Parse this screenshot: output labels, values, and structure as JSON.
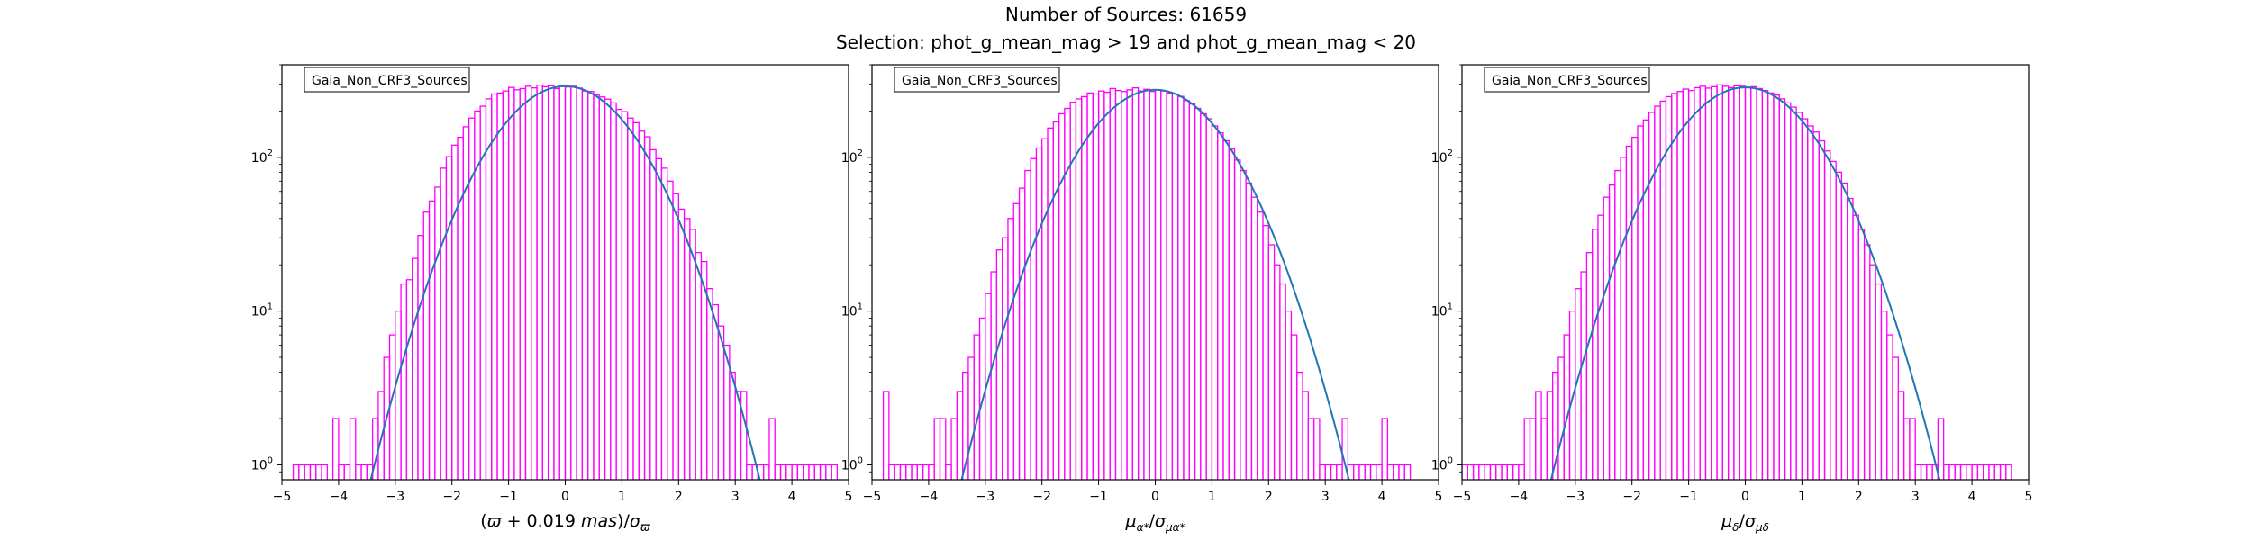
{
  "figure": {
    "title": "Number of Sources: 61659",
    "subtitle": "Selection: phot_g_mean_mag > 19 and phot_g_mean_mag < 20"
  },
  "colors": {
    "histogram": "#ff00ff",
    "fit": "#1f77b4",
    "axes": "#000000"
  },
  "chart_data": [
    {
      "type": "line",
      "panel": "parallax",
      "legend": "Gaia_Non_CRF3_Sources",
      "legend_position": "top-left",
      "xlabel_parts": [
        "(",
        "ϖ",
        " + 0.019 ",
        "mas",
        ")/",
        "σ",
        "ϖ"
      ],
      "ylabel": "",
      "xlim": [
        -5,
        5
      ],
      "ylim": [
        0.8,
        400
      ],
      "yscale": "log",
      "xticks": [
        -5,
        -4,
        -3,
        -2,
        -1,
        0,
        1,
        2,
        3,
        4,
        5
      ],
      "xtick_labels": [
        "−5",
        "−4",
        "−3",
        "−2",
        "−1",
        "0",
        "1",
        "2",
        "3",
        "4",
        "5"
      ],
      "yticks": [
        1,
        10,
        100
      ],
      "ytick_labels": [
        [
          "10",
          "0"
        ],
        [
          "10",
          "1"
        ],
        [
          "10",
          "2"
        ]
      ],
      "grid": false,
      "fit": {
        "name": "",
        "amplitude": 290,
        "mean": 0.0,
        "sigma": 1.0
      },
      "series": [
        {
          "name": "",
          "style": "histogram",
          "x": [
            -4.75,
            -4.65,
            -4.55,
            -4.45,
            -4.35,
            -4.25,
            -4.05,
            -3.95,
            -3.85,
            -3.75,
            -3.65,
            -3.55,
            -3.45,
            -3.35,
            -3.25,
            -3.15,
            -3.05,
            -2.95,
            -2.85,
            -2.75,
            -2.65,
            -2.55,
            -2.45,
            -2.35,
            -2.25,
            -2.15,
            -2.05,
            -1.95,
            -1.85,
            -1.75,
            -1.65,
            -1.55,
            -1.45,
            -1.35,
            -1.25,
            -1.15,
            -1.05,
            -0.95,
            -0.85,
            -0.75,
            -0.65,
            -0.55,
            -0.45,
            -0.35,
            -0.25,
            -0.15,
            -0.05,
            0.05,
            0.15,
            0.25,
            0.35,
            0.45,
            0.55,
            0.65,
            0.75,
            0.85,
            0.95,
            1.05,
            1.15,
            1.25,
            1.35,
            1.45,
            1.55,
            1.65,
            1.75,
            1.85,
            1.95,
            2.05,
            2.15,
            2.25,
            2.35,
            2.45,
            2.55,
            2.65,
            2.75,
            2.85,
            2.95,
            3.05,
            3.15,
            3.25,
            3.35,
            3.45,
            3.55,
            3.65,
            3.75,
            3.85,
            3.95,
            4.05,
            4.15,
            4.25,
            4.35,
            4.45,
            4.55,
            4.65,
            4.75
          ],
          "values": [
            1,
            1,
            1,
            1,
            1,
            1,
            2,
            1,
            1,
            2,
            1,
            1,
            1,
            2,
            3,
            5,
            7,
            10,
            15,
            16,
            22,
            31,
            44,
            52,
            64,
            85,
            101,
            120,
            135,
            158,
            180,
            200,
            215,
            240,
            258,
            262,
            270,
            285,
            275,
            280,
            290,
            283,
            295,
            288,
            292,
            280,
            295,
            287,
            290,
            282,
            270,
            268,
            254,
            247,
            239,
            226,
            205,
            198,
            180,
            168,
            148,
            136,
            112,
            98,
            85,
            70,
            58,
            46,
            40,
            34,
            24,
            21,
            14,
            11,
            8,
            6,
            4,
            3,
            3,
            1,
            1,
            1,
            1,
            2,
            1,
            1,
            1,
            1,
            1,
            1,
            1,
            1,
            1,
            1,
            1
          ]
        }
      ]
    },
    {
      "type": "line",
      "panel": "pm-ra",
      "legend": "Gaia_Non_CRF3_Sources",
      "legend_position": "top-left",
      "xlabel_parts": [
        "μ",
        "α*",
        "/",
        "σ",
        "μα*"
      ],
      "ylabel": "",
      "xlim": [
        -5,
        5
      ],
      "ylim": [
        0.8,
        400
      ],
      "yscale": "log",
      "xticks": [
        -5,
        -4,
        -3,
        -2,
        -1,
        0,
        1,
        2,
        3,
        4,
        5
      ],
      "xtick_labels": [
        "−5",
        "−4",
        "−3",
        "−2",
        "−1",
        "0",
        "1",
        "2",
        "3",
        "4",
        "5"
      ],
      "yticks": [
        1,
        10,
        100
      ],
      "ytick_labels": [
        [
          "10",
          "0"
        ],
        [
          "10",
          "1"
        ],
        [
          "10",
          "2"
        ]
      ],
      "grid": false,
      "fit": {
        "name": "",
        "amplitude": 275,
        "mean": 0.0,
        "sigma": 1.0
      },
      "series": [
        {
          "name": "",
          "style": "histogram",
          "x": [
            -4.75,
            -4.65,
            -4.55,
            -4.45,
            -4.35,
            -4.25,
            -4.15,
            -4.05,
            -3.95,
            -3.85,
            -3.75,
            -3.65,
            -3.55,
            -3.45,
            -3.35,
            -3.25,
            -3.15,
            -3.05,
            -2.95,
            -2.85,
            -2.75,
            -2.65,
            -2.55,
            -2.45,
            -2.35,
            -2.25,
            -2.15,
            -2.05,
            -1.95,
            -1.85,
            -1.75,
            -1.65,
            -1.55,
            -1.45,
            -1.35,
            -1.25,
            -1.15,
            -1.05,
            -0.95,
            -0.85,
            -0.75,
            -0.65,
            -0.55,
            -0.45,
            -0.35,
            -0.25,
            -0.15,
            -0.05,
            0.05,
            0.15,
            0.25,
            0.35,
            0.45,
            0.55,
            0.65,
            0.75,
            0.85,
            0.95,
            1.05,
            1.15,
            1.25,
            1.35,
            1.45,
            1.55,
            1.65,
            1.75,
            1.85,
            1.95,
            2.05,
            2.15,
            2.25,
            2.35,
            2.45,
            2.55,
            2.65,
            2.75,
            2.85,
            2.95,
            3.05,
            3.15,
            3.25,
            3.35,
            3.45,
            3.55,
            3.65,
            3.75,
            3.85,
            3.95,
            4.05,
            4.15,
            4.25,
            4.35,
            4.45
          ],
          "values": [
            3,
            1,
            1,
            1,
            1,
            1,
            1,
            1,
            1,
            2,
            2,
            1,
            2,
            3,
            4,
            5,
            7,
            9,
            13,
            18,
            25,
            30,
            40,
            50,
            63,
            82,
            98,
            115,
            132,
            155,
            170,
            192,
            208,
            228,
            240,
            248,
            262,
            258,
            270,
            265,
            280,
            272,
            268,
            275,
            283,
            270,
            277,
            268,
            275,
            270,
            262,
            258,
            249,
            234,
            222,
            208,
            192,
            178,
            160,
            144,
            128,
            113,
            96,
            82,
            68,
            55,
            44,
            36,
            27,
            20,
            15,
            10,
            7,
            4,
            3,
            2,
            2,
            1,
            1,
            1,
            1,
            2,
            1,
            1,
            1,
            1,
            1,
            1,
            2,
            1,
            1,
            1,
            1
          ]
        }
      ]
    },
    {
      "type": "line",
      "panel": "pm-dec",
      "legend": "Gaia_Non_CRF3_Sources",
      "legend_position": "top-left",
      "xlabel_parts": [
        "μ",
        "δ",
        "/",
        "σ",
        "μδ"
      ],
      "ylabel": "",
      "xlim": [
        -5,
        5
      ],
      "ylim": [
        0.8,
        400
      ],
      "yscale": "log",
      "xticks": [
        -5,
        -4,
        -3,
        -2,
        -1,
        0,
        1,
        2,
        3,
        4,
        5
      ],
      "xtick_labels": [
        "−5",
        "−4",
        "−3",
        "−2",
        "−1",
        "0",
        "1",
        "2",
        "3",
        "4",
        "5"
      ],
      "yticks": [
        1,
        10,
        100
      ],
      "ytick_labels": [
        [
          "10",
          "0"
        ],
        [
          "10",
          "1"
        ],
        [
          "10",
          "2"
        ]
      ],
      "grid": false,
      "fit": {
        "name": "",
        "amplitude": 285,
        "mean": 0.0,
        "sigma": 1.0
      },
      "series": [
        {
          "name": "",
          "style": "histogram",
          "x": [
            -4.95,
            -4.85,
            -4.75,
            -4.65,
            -4.55,
            -4.45,
            -4.35,
            -4.25,
            -4.15,
            -4.05,
            -3.95,
            -3.85,
            -3.75,
            -3.65,
            -3.55,
            -3.45,
            -3.35,
            -3.25,
            -3.15,
            -3.05,
            -2.95,
            -2.85,
            -2.75,
            -2.65,
            -2.55,
            -2.45,
            -2.35,
            -2.25,
            -2.15,
            -2.05,
            -1.95,
            -1.85,
            -1.75,
            -1.65,
            -1.55,
            -1.45,
            -1.35,
            -1.25,
            -1.15,
            -1.05,
            -0.95,
            -0.85,
            -0.75,
            -0.65,
            -0.55,
            -0.45,
            -0.35,
            -0.25,
            -0.15,
            -0.05,
            0.05,
            0.15,
            0.25,
            0.35,
            0.45,
            0.55,
            0.65,
            0.75,
            0.85,
            0.95,
            1.05,
            1.15,
            1.25,
            1.35,
            1.45,
            1.55,
            1.65,
            1.75,
            1.85,
            1.95,
            2.05,
            2.15,
            2.25,
            2.35,
            2.45,
            2.55,
            2.65,
            2.75,
            2.85,
            2.95,
            3.05,
            3.15,
            3.25,
            3.35,
            3.45,
            3.55,
            3.65,
            3.75,
            3.85,
            3.95,
            4.05,
            4.15,
            4.25,
            4.35,
            4.45,
            4.55,
            4.65
          ],
          "values": [
            1,
            1,
            1,
            1,
            1,
            1,
            1,
            1,
            1,
            1,
            1,
            2,
            2,
            3,
            2,
            3,
            4,
            5,
            7,
            10,
            14,
            18,
            24,
            34,
            42,
            55,
            66,
            82,
            100,
            118,
            135,
            160,
            175,
            196,
            215,
            232,
            248,
            260,
            268,
            278,
            272,
            284,
            290,
            282,
            288,
            296,
            290,
            284,
            292,
            290,
            286,
            288,
            280,
            272,
            262,
            254,
            240,
            226,
            212,
            196,
            178,
            160,
            146,
            128,
            110,
            94,
            80,
            68,
            54,
            42,
            34,
            27,
            20,
            15,
            10,
            7,
            5,
            3,
            2,
            2,
            1,
            1,
            1,
            1,
            2,
            1,
            1,
            1,
            1,
            1,
            1,
            1,
            1,
            1,
            1,
            1,
            1
          ]
        }
      ]
    }
  ]
}
